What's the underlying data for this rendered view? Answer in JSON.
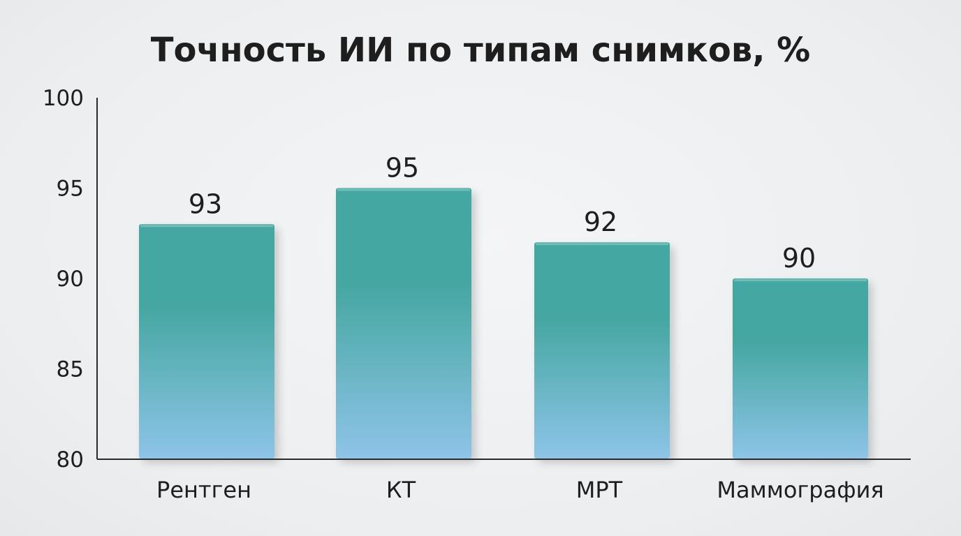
{
  "chart_data": {
    "type": "bar",
    "title": "Точность ИИ по типам снимков, %",
    "xlabel": "",
    "ylabel": "",
    "categories": [
      "Рентген",
      "КТ",
      "МРТ",
      "Маммография"
    ],
    "values": [
      93,
      95,
      92,
      90
    ],
    "ylim": [
      80,
      100
    ],
    "yticks": [
      80,
      85,
      90,
      95,
      100
    ],
    "data_labels": [
      "93",
      "95",
      "92",
      "90"
    ],
    "grid": false,
    "legend": "none"
  },
  "colors": {
    "bar_top": "#45a7a1",
    "bar_bottom": "#8ec4e8",
    "axis": "#2a2a2a",
    "text": "#1e1e1e"
  }
}
